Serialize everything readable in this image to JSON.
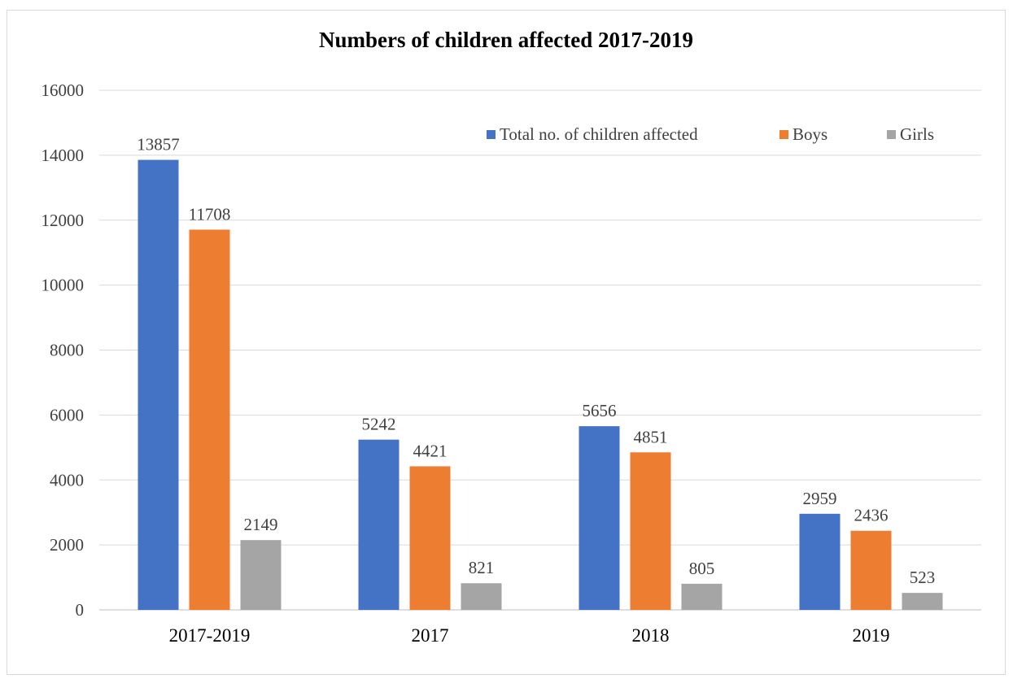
{
  "chart_data": {
    "type": "bar",
    "title": "Numbers of children affected 2017-2019",
    "xlabel": "",
    "ylabel": "",
    "ylim": [
      0,
      16000
    ],
    "yticks": [
      0,
      2000,
      4000,
      6000,
      8000,
      10000,
      12000,
      14000,
      16000
    ],
    "grid": true,
    "legend_position": "top-right",
    "categories": [
      "2017-2019",
      "2017",
      "2018",
      "2019"
    ],
    "series": [
      {
        "name": "Total no. of children affected",
        "color": "#4472C4",
        "values": [
          13857,
          5242,
          5656,
          2959
        ]
      },
      {
        "name": "Boys",
        "color": "#ED7D31",
        "values": [
          11708,
          4421,
          4851,
          2436
        ]
      },
      {
        "name": "Girls",
        "color": "#A5A5A5",
        "values": [
          2149,
          821,
          805,
          523
        ]
      }
    ]
  }
}
